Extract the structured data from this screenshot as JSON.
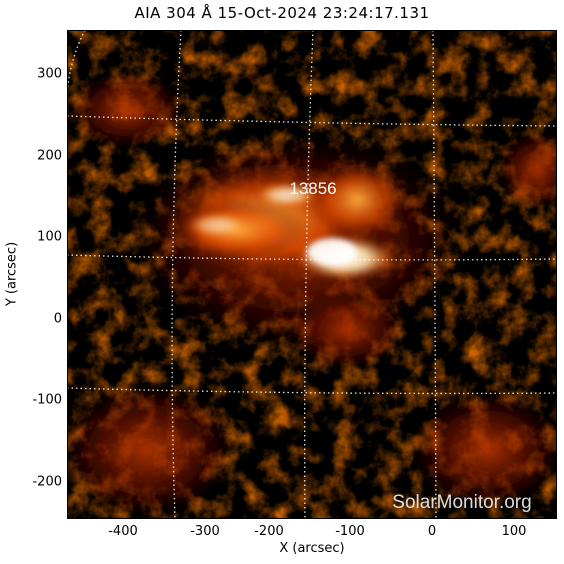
{
  "title": "AIA 304 Å 15-Oct-2024 23:24:17.131",
  "xlabel": "X (arcsec)",
  "ylabel": "Y (arcsec)",
  "xticks": [
    "-400",
    "-300",
    "-200",
    "-100",
    "0",
    "100"
  ],
  "yticks": [
    "300",
    "200",
    "100",
    "0",
    "-100",
    "-200"
  ],
  "region_label": "13856",
  "watermark": "SolarMonitor.org",
  "colors": {
    "background": "#000000",
    "glow": "#ff6a00",
    "core": "#ffffff",
    "grid": "#ffffff"
  }
}
